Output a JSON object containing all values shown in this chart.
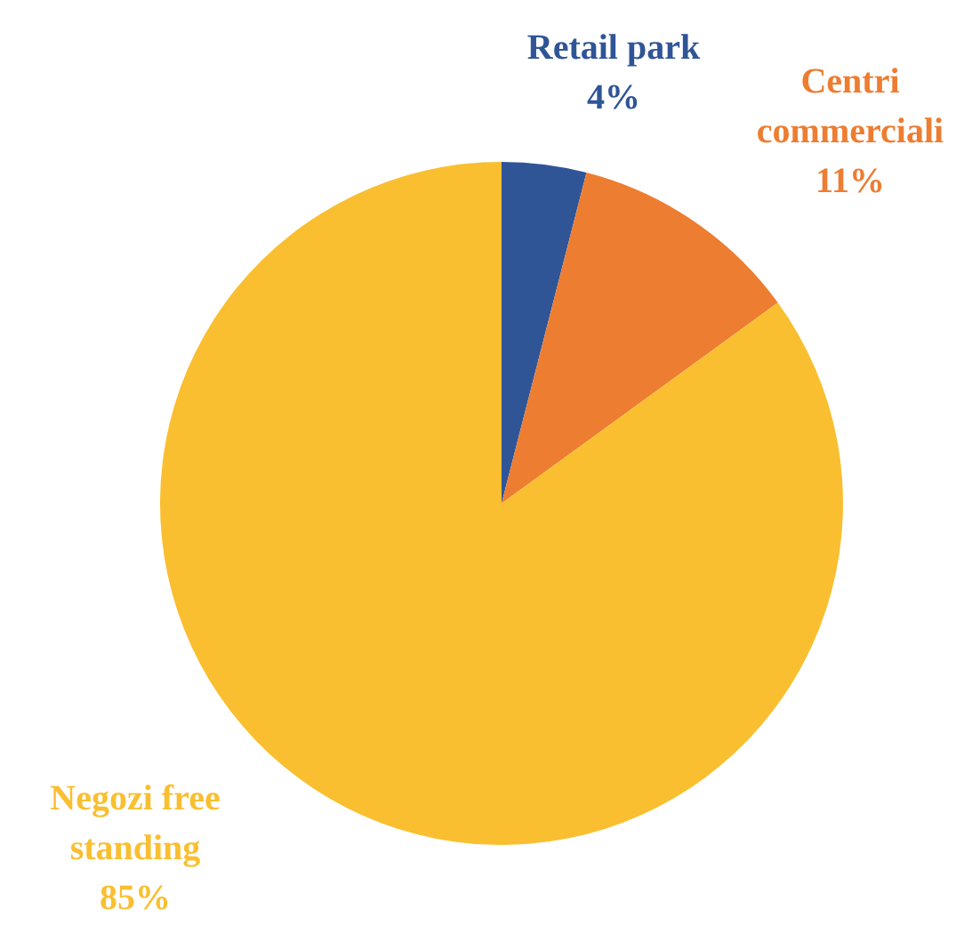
{
  "chart_data": {
    "type": "pie",
    "categories": [
      "Retail park",
      "Centri commerciali",
      "Negozi free standing"
    ],
    "values": [
      4,
      11,
      85
    ],
    "colors": [
      "#2f5597",
      "#ed7d31",
      "#f9bf30"
    ],
    "value_labels": [
      "4%",
      "11%",
      "85%"
    ]
  }
}
